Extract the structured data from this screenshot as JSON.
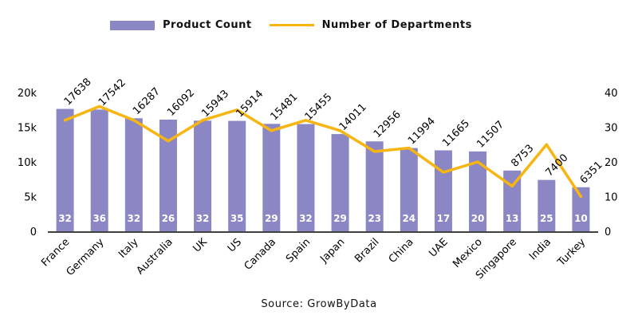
{
  "colors": {
    "bar": "#8b86c4",
    "line": "#f7b512",
    "axis": "#000000"
  },
  "legend": {
    "bar_label": "Product Count",
    "line_label": "Number of Departments"
  },
  "source": "Source: GrowByData",
  "chart_data": {
    "type": "bar",
    "categories": [
      "France",
      "Germany",
      "Italy",
      "Australia",
      "UK",
      "US",
      "Canada",
      "Spain",
      "Japan",
      "Brazil",
      "China",
      "UAE",
      "Mexico",
      "Singapore",
      "India",
      "Turkey"
    ],
    "series": [
      {
        "name": "Product Count",
        "type": "bar",
        "axis": "left",
        "values": [
          17638,
          17542,
          16287,
          16092,
          15943,
          15914,
          15481,
          15455,
          14011,
          12956,
          11994,
          11665,
          11507,
          8753,
          7400,
          6351
        ]
      },
      {
        "name": "Number of Departments",
        "type": "line",
        "axis": "right",
        "values": [
          32,
          36,
          32,
          26,
          32,
          35,
          29,
          32,
          29,
          23,
          24,
          17,
          20,
          13,
          25,
          10
        ]
      }
    ],
    "left_axis": {
      "ticks": [
        "0",
        "5k",
        "10k",
        "15k",
        "20k"
      ],
      "tick_values": [
        0,
        5000,
        10000,
        15000,
        20000
      ],
      "ylim": [
        0,
        20000
      ]
    },
    "right_axis": {
      "ticks": [
        "0",
        "10",
        "20",
        "30",
        "40"
      ],
      "tick_values": [
        0,
        10,
        20,
        30,
        40
      ],
      "ylim": [
        0,
        40
      ]
    },
    "xlabel": "",
    "ylabel": "",
    "grid": false,
    "legend_position": "top-left"
  }
}
